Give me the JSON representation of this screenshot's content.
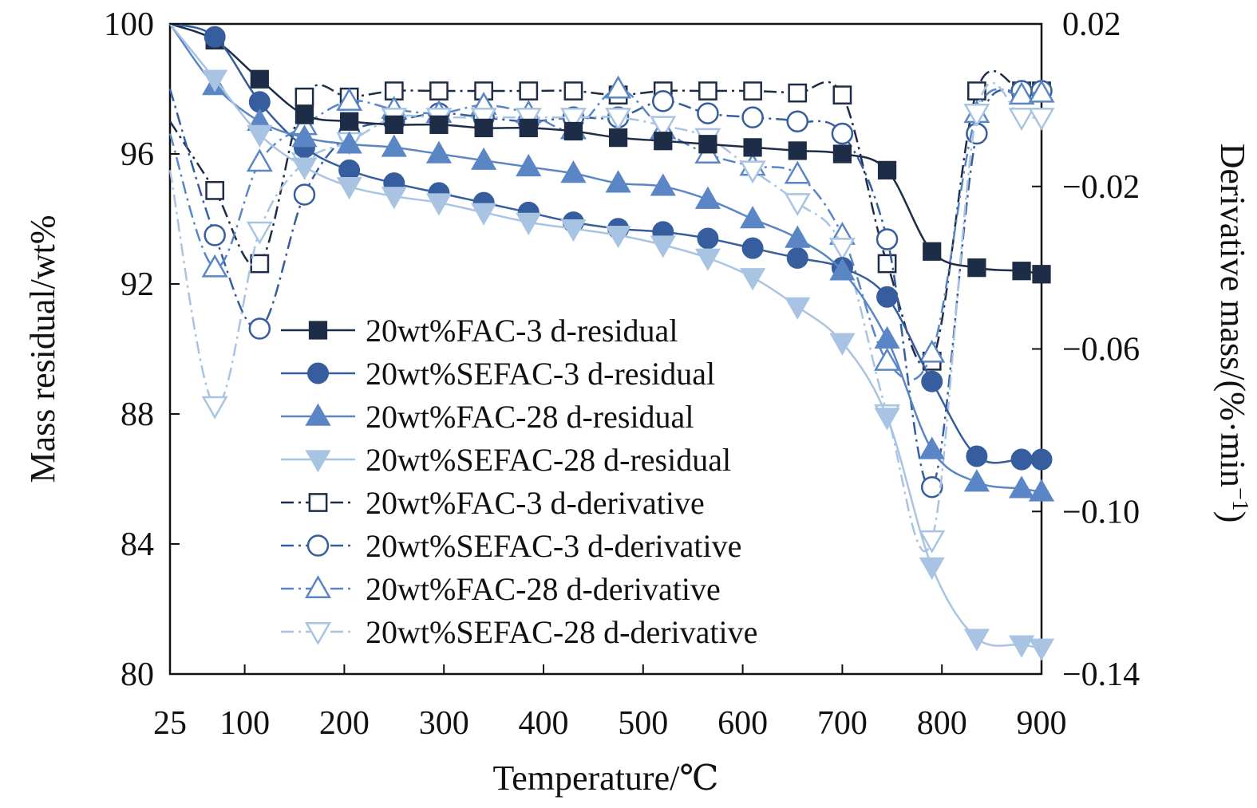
{
  "chart_data": {
    "type": "line",
    "title": "",
    "xlabel": "Temperature/℃",
    "ylabel": "Mass residual/wt%",
    "y2label": "Derivative mass/(%·min",
    "y2label_sup": "−1",
    "y2label_close": ")",
    "xlim": [
      25,
      900
    ],
    "ylim": [
      80,
      100
    ],
    "y2lim": [
      -0.14,
      0.02
    ],
    "xticks": [
      "25",
      "100",
      "200",
      "300",
      "400",
      "500",
      "600",
      "700",
      "800",
      "900"
    ],
    "yticks": [
      "80",
      "84",
      "88",
      "92",
      "96",
      "100"
    ],
    "y2ticks": [
      "−0.14",
      "−0.10",
      "−0.06",
      "−0.02",
      "0.02"
    ],
    "legend_position": "center-left",
    "x": [
      25,
      70,
      115,
      160,
      205,
      250,
      295,
      340,
      385,
      430,
      475,
      520,
      565,
      610,
      655,
      700,
      745,
      790,
      835,
      880,
      900
    ],
    "series": [
      {
        "name": "20wt%FAC-3 d-residual",
        "axis": "left",
        "marker": "square",
        "filled": true,
        "dash": "solid",
        "color": "#1e2d47",
        "values": [
          100,
          99.5,
          98.3,
          97.2,
          97.0,
          96.9,
          96.9,
          96.8,
          96.8,
          96.7,
          96.5,
          96.4,
          96.3,
          96.2,
          96.1,
          96.0,
          95.5,
          93.0,
          92.5,
          92.4,
          92.3
        ]
      },
      {
        "name": "20wt%SEFAC-3 d-residual",
        "axis": "left",
        "marker": "circle",
        "filled": true,
        "dash": "solid",
        "color": "#365e9e",
        "values": [
          100,
          99.6,
          97.6,
          96.2,
          95.5,
          95.1,
          94.8,
          94.5,
          94.2,
          93.9,
          93.7,
          93.6,
          93.4,
          93.1,
          92.8,
          92.5,
          91.6,
          89.0,
          86.7,
          86.6,
          86.6
        ]
      },
      {
        "name": "20wt%FAC-28 d-residual",
        "axis": "left",
        "marker": "triangle-up",
        "filled": true,
        "dash": "solid",
        "color": "#5b86c5",
        "values": [
          100,
          98.1,
          97.0,
          96.5,
          96.3,
          96.2,
          96.0,
          95.8,
          95.6,
          95.4,
          95.1,
          95.0,
          94.6,
          94.0,
          93.4,
          92.4,
          90.3,
          86.9,
          85.9,
          85.7,
          85.6
        ]
      },
      {
        "name": "20wt%SEFAC-28 d-residual",
        "axis": "left",
        "marker": "triangle-down",
        "filled": true,
        "dash": "solid",
        "color": "#a9c4e3",
        "values": [
          100,
          98.3,
          96.6,
          95.6,
          95.0,
          94.7,
          94.5,
          94.2,
          93.9,
          93.7,
          93.5,
          93.2,
          92.8,
          92.2,
          91.3,
          90.2,
          87.9,
          83.3,
          81.1,
          80.9,
          80.8
        ]
      },
      {
        "name": "20wt%FAC-3 d-derivative",
        "axis": "right",
        "marker": "square",
        "filled": false,
        "dash": "dash-dot",
        "color": "#1e2d47",
        "values": [
          -0.004,
          -0.021,
          -0.039,
          0.002,
          0.002,
          0.0035,
          0.0035,
          0.0035,
          0.0035,
          0.0035,
          0.0025,
          0.0035,
          0.0035,
          0.0035,
          0.003,
          0.0025,
          -0.039,
          -0.063,
          0.0035,
          0.0035,
          0.0035
        ]
      },
      {
        "name": "20wt%SEFAC-3 d-derivative",
        "axis": "right",
        "marker": "circle",
        "filled": false,
        "dash": "dash-dot",
        "color": "#365e9e",
        "values": [
          0.004,
          -0.032,
          -0.055,
          -0.022,
          -0.007,
          -0.004,
          -0.002,
          -0.003,
          -0.004,
          -0.003,
          -0.003,
          0.001,
          -0.002,
          -0.003,
          -0.004,
          -0.007,
          -0.033,
          -0.094,
          -0.007,
          0.0035,
          0.0035
        ]
      },
      {
        "name": "20wt%FAC-28 d-derivative",
        "axis": "right",
        "marker": "triangle-up",
        "filled": false,
        "dash": "dash-dot",
        "color": "#5b86c5",
        "values": [
          -0.007,
          -0.04,
          -0.014,
          -0.005,
          0.001,
          -0.001,
          -0.002,
          0.0,
          -0.002,
          -0.006,
          0.004,
          -0.006,
          -0.012,
          -0.015,
          -0.017,
          -0.032,
          -0.063,
          -0.061,
          -0.002,
          0.0025,
          0.003
        ]
      },
      {
        "name": "20wt%SEFAC-28 d-derivative",
        "axis": "right",
        "marker": "triangle-down",
        "filled": false,
        "dash": "dash-dot",
        "color": "#a9c4e3",
        "values": [
          -0.016,
          -0.074,
          -0.031,
          -0.014,
          -0.009,
          -0.003,
          -0.003,
          -0.003,
          -0.003,
          -0.003,
          -0.003,
          -0.005,
          -0.008,
          -0.016,
          -0.024,
          -0.035,
          -0.076,
          -0.107,
          -0.002,
          -0.003,
          -0.003
        ]
      }
    ]
  }
}
